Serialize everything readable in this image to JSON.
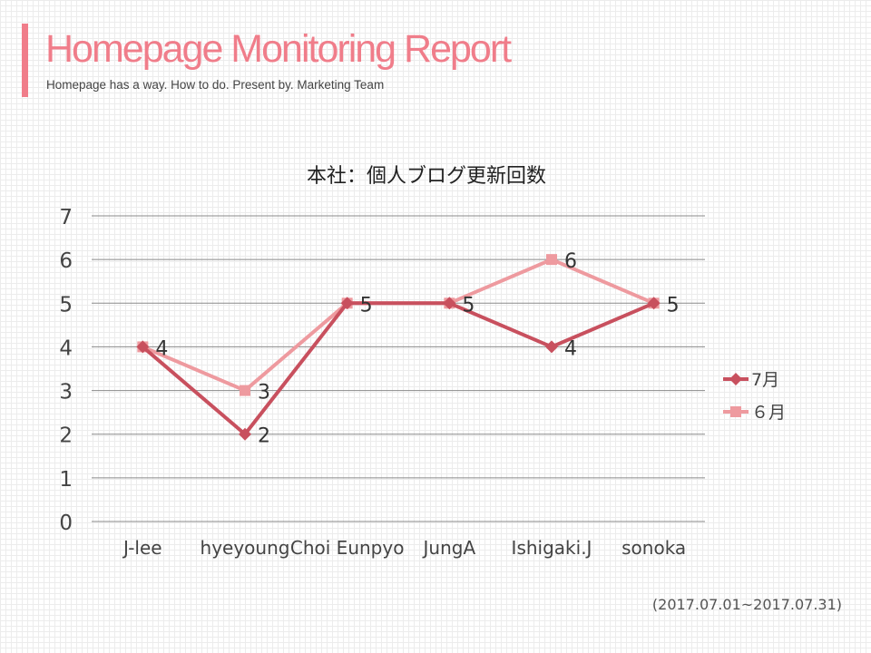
{
  "header": {
    "title": "Homepage Monitoring Report",
    "subtitle": "Homepage has a way. How to do. Present by. Marketing Team",
    "accent_color": "#f07d8a"
  },
  "period": "(2017.07.01~2017.07.31)",
  "chart_data": {
    "type": "line",
    "title": "本社：個人ブログ更新回数",
    "xlabel": "",
    "ylabel": "",
    "categories": [
      "J-lee",
      "hyeyoung",
      "Choi Eunpyo",
      "JungA",
      "Ishigaki.J",
      "sonoka"
    ],
    "ylim": [
      0,
      7
    ],
    "yticks": [
      0,
      1,
      2,
      3,
      4,
      5,
      6,
      7
    ],
    "grid": true,
    "legend_position": "right",
    "series": [
      {
        "name": "7月",
        "values": [
          4,
          2,
          5,
          5,
          4,
          5
        ],
        "color": "#c8505e",
        "marker": "diamond"
      },
      {
        "name": "６月",
        "values": [
          4,
          3,
          5,
          5,
          6,
          5
        ],
        "color": "#ee9a9f",
        "marker": "square"
      }
    ],
    "data_labels": {
      "values": [
        4,
        3,
        5,
        5,
        6,
        5
      ],
      "extra": [
        {
          "category_index": 1,
          "value": 2
        },
        {
          "category_index": 4,
          "value": 4
        }
      ]
    }
  }
}
